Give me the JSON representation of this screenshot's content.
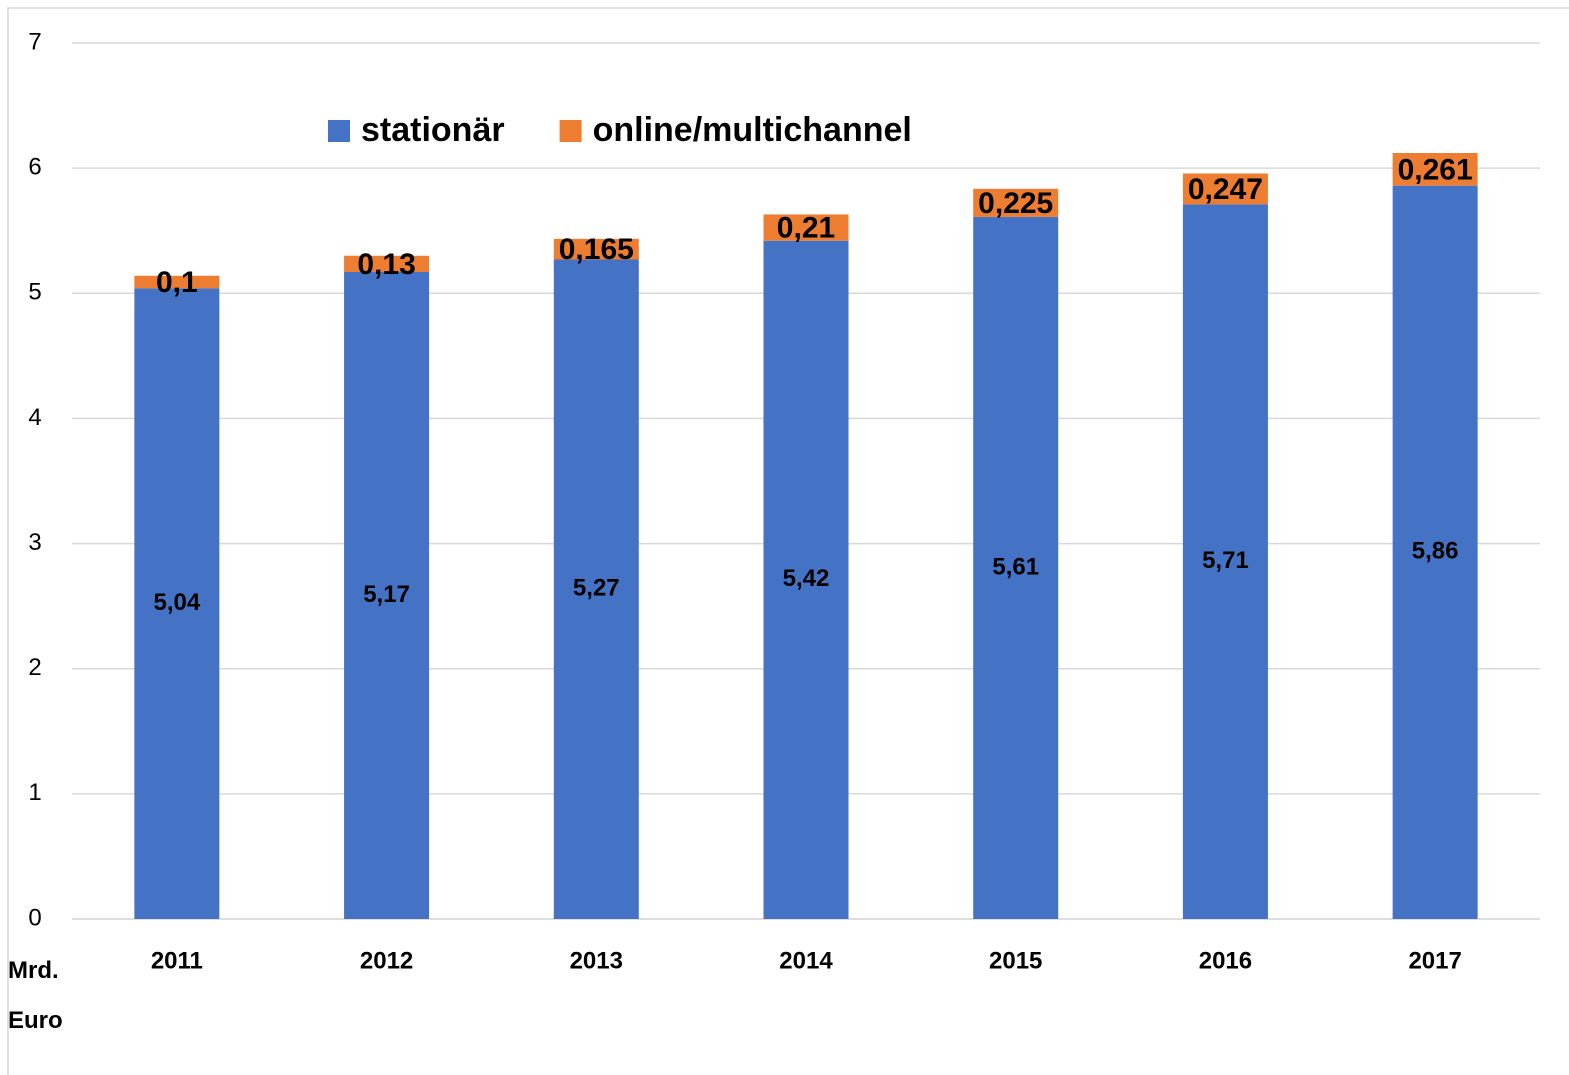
{
  "chart_data": {
    "type": "stacked_bar",
    "y_label": "Mrd. Euro",
    "categories": [
      "2011",
      "2012",
      "2013",
      "2014",
      "2015",
      "2016",
      "2017"
    ],
    "series": [
      {
        "name": "stationär",
        "color": "#4472c4",
        "values": [
          5.04,
          5.17,
          5.27,
          5.42,
          5.61,
          5.71,
          5.86
        ],
        "value_labels": [
          "5,04",
          "5,17",
          "5,27",
          "5,42",
          "5,61",
          "5,71",
          "5,86"
        ]
      },
      {
        "name": "online/multichannel",
        "color": "#ed7d31",
        "values": [
          0.1,
          0.13,
          0.165,
          0.21,
          0.225,
          0.247,
          0.261
        ],
        "value_labels": [
          "0,1",
          "0,13",
          "0,165",
          "0,21",
          "0,225",
          "0,247",
          "0,261"
        ]
      }
    ],
    "ylim": [
      0,
      7
    ],
    "yticks": [
      0,
      1,
      2,
      3,
      4,
      5,
      6,
      7
    ],
    "grid": true,
    "legend": "top"
  }
}
